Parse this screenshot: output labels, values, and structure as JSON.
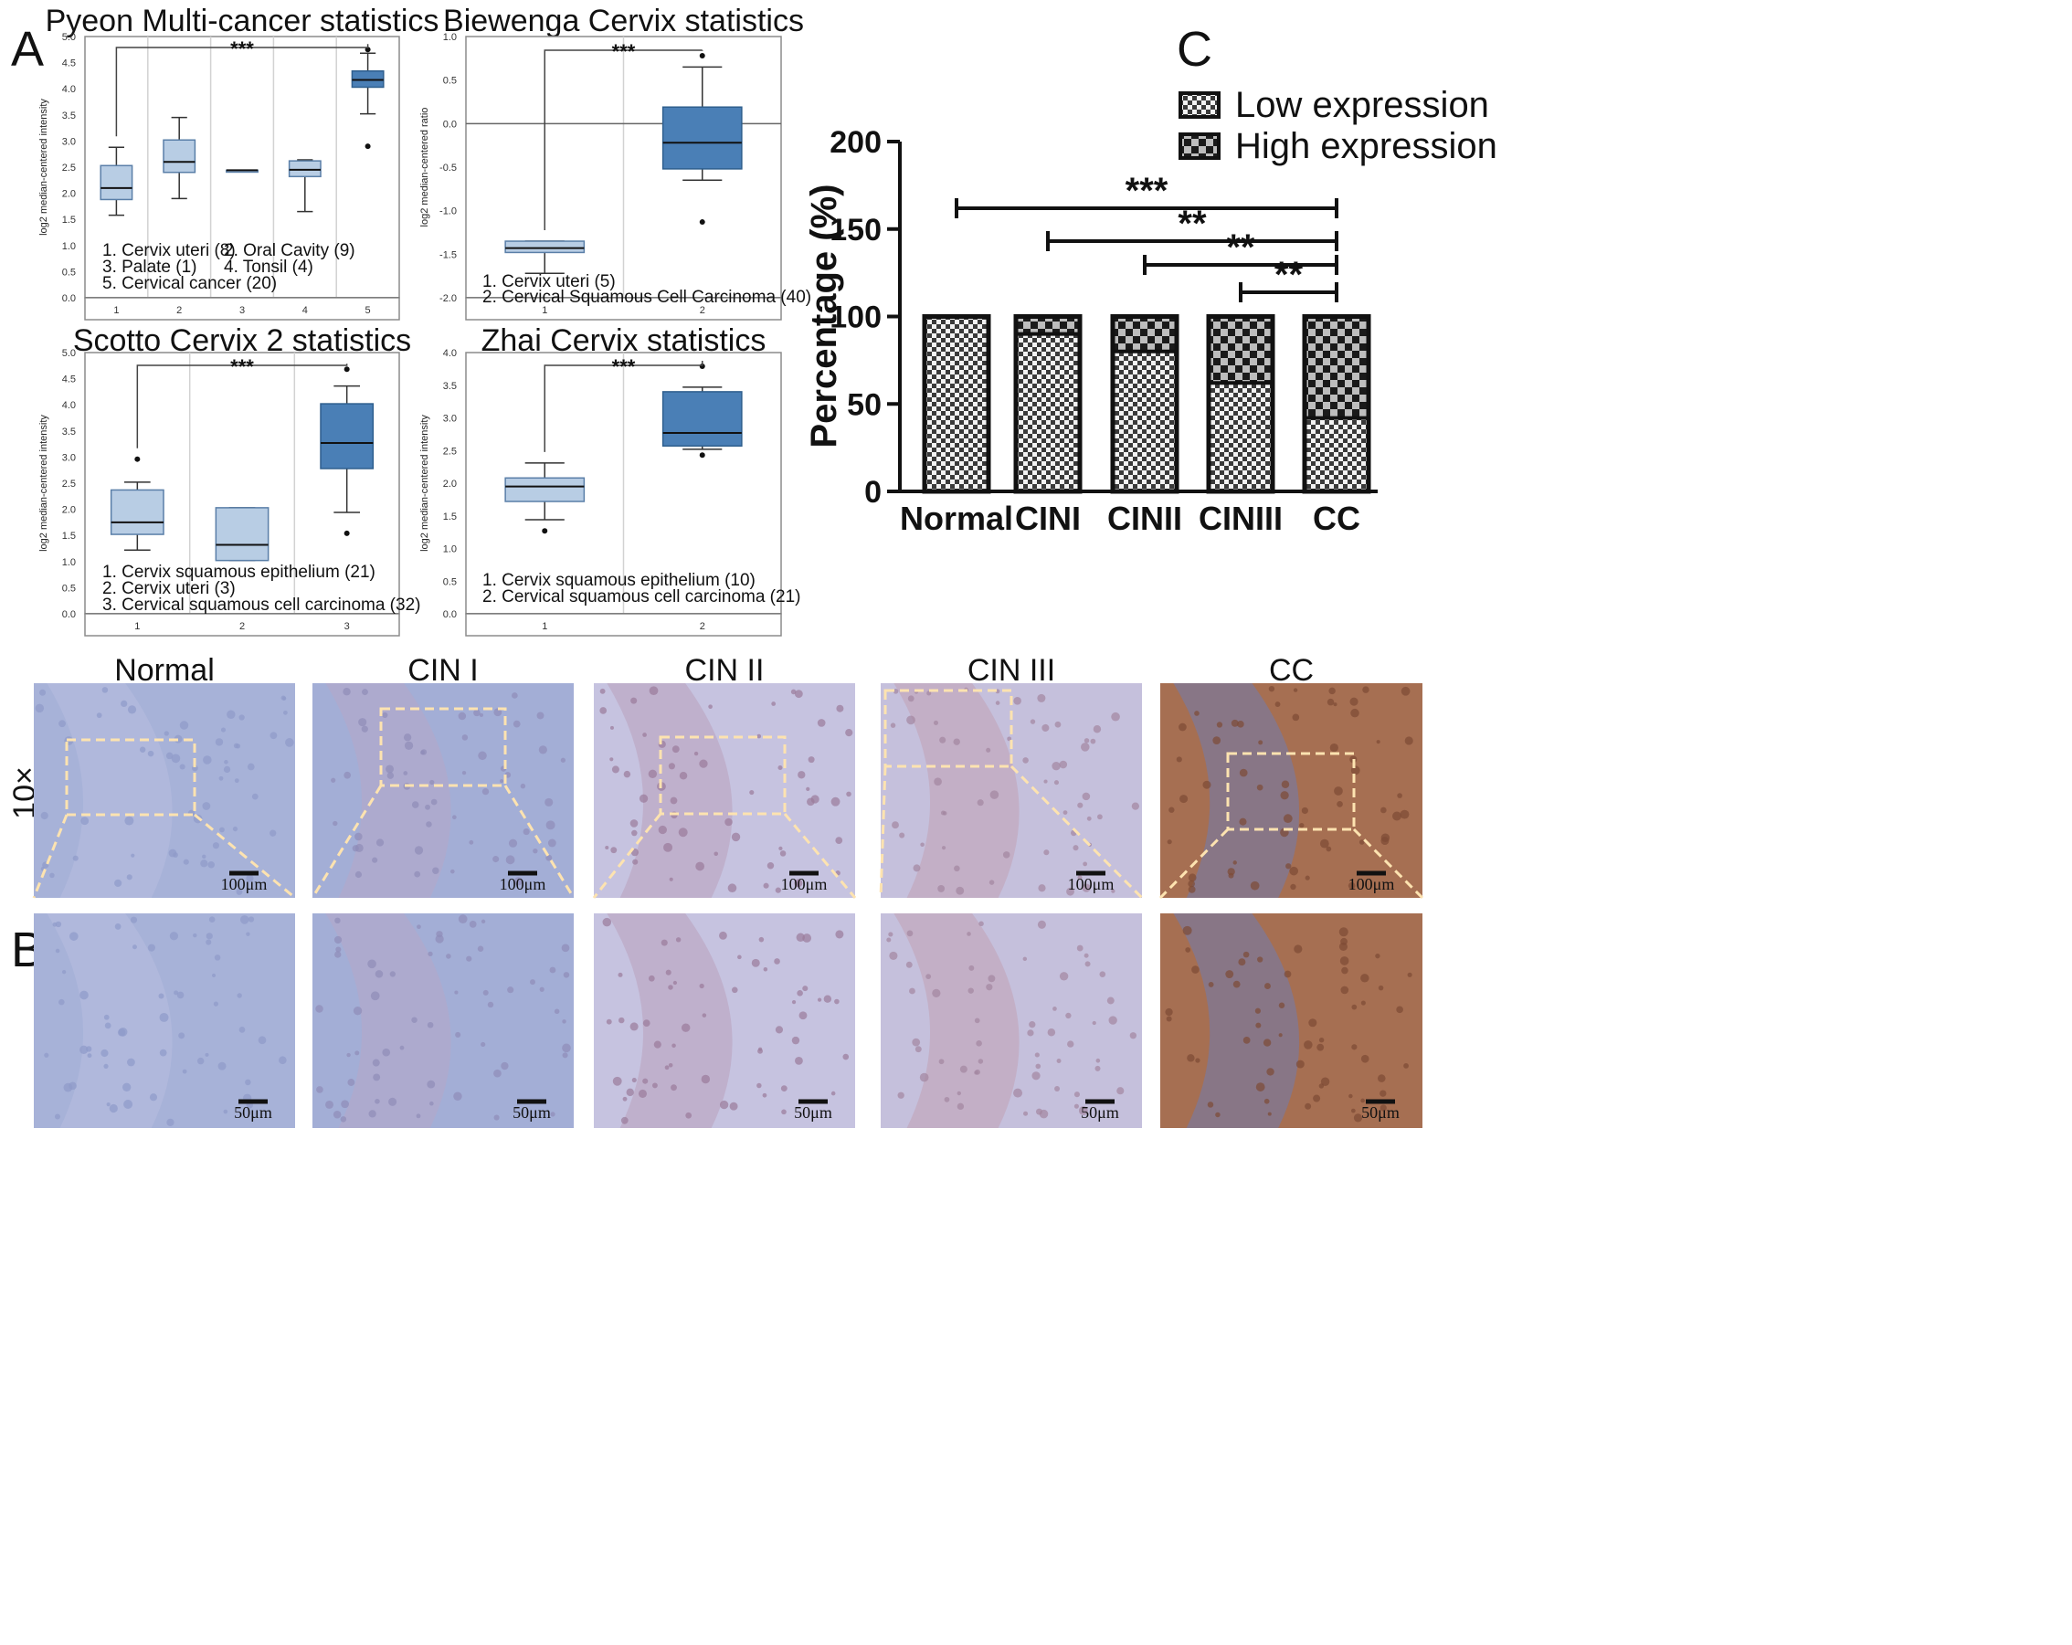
{
  "panel_labels": {
    "a": "A",
    "b": "B",
    "c": "C"
  },
  "colors": {
    "highlight": "#5b8bc0",
    "box_light": "#b8cde4",
    "box_dark": "#4a7fb6",
    "text_dark": "#111111"
  },
  "chart_data": [
    {
      "type": "box",
      "title": "Pyeon Multi-cancer statistics",
      "ylabel": "log2 median-centered intensity",
      "ylim": [
        0.0,
        5.0
      ],
      "yticks": [
        "0.0",
        "0.5",
        "1.0",
        "1.5",
        "2.0",
        "2.5",
        "3.0",
        "3.5",
        "4.0",
        "4.5",
        "5.0"
      ],
      "categories": [
        "1",
        "2",
        "3",
        "4",
        "5"
      ],
      "boxes": [
        {
          "min": 1.58,
          "q1": 1.88,
          "median": 2.1,
          "q3": 2.53,
          "max": 2.88,
          "outliers": [],
          "dark": false
        },
        {
          "min": 1.9,
          "q1": 2.4,
          "median": 2.6,
          "q3": 3.02,
          "max": 3.45,
          "outliers": [],
          "dark": false
        },
        {
          "min": 2.44,
          "q1": 2.44,
          "median": 2.44,
          "q3": 2.44,
          "max": 2.44,
          "outliers": [],
          "dark": false
        },
        {
          "min": 1.65,
          "q1": 2.32,
          "median": 2.45,
          "q3": 2.62,
          "max": 2.64,
          "outliers": [],
          "dark": false
        },
        {
          "min": 3.52,
          "q1": 4.03,
          "median": 4.17,
          "q3": 4.34,
          "max": 4.68,
          "outliers": [
            2.9,
            4.75
          ],
          "dark": true
        }
      ],
      "significance": {
        "from": 1,
        "to": 5,
        "label": "***"
      },
      "legend": [
        {
          "text": "1. Cervix uteri (8)",
          "highlight": false
        },
        {
          "text": "2. Oral Cavity (9)",
          "highlight": false
        },
        {
          "text": "3. Palate (1)",
          "highlight": false
        },
        {
          "text": "4. Tonsil (4)",
          "highlight": false
        },
        {
          "text": "5. Cervical cancer (20)",
          "highlight": true
        }
      ]
    },
    {
      "type": "box",
      "title": "Biewenga Cervix statistics",
      "ylabel": "log2 median-centered ratio",
      "ylim": [
        -2.0,
        1.0
      ],
      "yticks": [
        "-2.0",
        "-1.5",
        "-1.0",
        "-0.5",
        "0.0",
        "0.5",
        "1.0"
      ],
      "categories": [
        "1",
        "2"
      ],
      "boxes": [
        {
          "min": -1.72,
          "q1": -1.48,
          "median": -1.43,
          "q3": -1.35,
          "max": -1.35,
          "outliers": [],
          "dark": false
        },
        {
          "min": -0.65,
          "q1": -0.52,
          "median": -0.22,
          "q3": 0.19,
          "max": 0.65,
          "outliers": [
            -1.13,
            0.78
          ],
          "dark": true
        }
      ],
      "significance": {
        "from": 1,
        "to": 2,
        "label": "***"
      },
      "legend": [
        {
          "text": "1. Cervix uteri (5)",
          "highlight": false
        },
        {
          "text": "2. Cervical Squamous Cell Carcinoma (40)",
          "highlight": true
        }
      ]
    },
    {
      "type": "box",
      "title": "Scotto Cervix 2 statistics",
      "ylabel": "log2 median-centered intensity",
      "ylim": [
        0.0,
        5.0
      ],
      "yticks": [
        "0.0",
        "0.5",
        "1.0",
        "1.5",
        "2.0",
        "2.5",
        "3.0",
        "3.5",
        "4.0",
        "4.5",
        "5.0"
      ],
      "categories": [
        "1",
        "2",
        "3"
      ],
      "boxes": [
        {
          "min": 1.22,
          "q1": 1.52,
          "median": 1.75,
          "q3": 2.37,
          "max": 2.52,
          "outliers": [
            2.96
          ],
          "dark": false
        },
        {
          "min": 1.02,
          "q1": 1.02,
          "median": 1.32,
          "q3": 2.03,
          "max": 2.03,
          "outliers": [],
          "dark": false
        },
        {
          "min": 1.94,
          "q1": 2.78,
          "median": 3.27,
          "q3": 4.02,
          "max": 4.36,
          "outliers": [
            1.54,
            4.68
          ],
          "dark": true
        }
      ],
      "significance": {
        "from": 1,
        "to": 3,
        "label": "***"
      },
      "legend": [
        {
          "text": "1. Cervix squamous epithelium (21)",
          "highlight": false
        },
        {
          "text": "2. Cervix uteri (3)",
          "highlight": false
        },
        {
          "text": "3. Cervical squamous cell carcinoma (32)",
          "highlight": true
        }
      ]
    },
    {
      "type": "box",
      "title": "Zhai Cervix statistics",
      "ylabel": "log2 median-centered intensity",
      "ylim": [
        0.0,
        4.0
      ],
      "yticks": [
        "0.0",
        "0.5",
        "1.0",
        "1.5",
        "2.0",
        "2.5",
        "3.0",
        "3.5",
        "4.0"
      ],
      "categories": [
        "1",
        "2"
      ],
      "boxes": [
        {
          "min": 1.44,
          "q1": 1.72,
          "median": 1.95,
          "q3": 2.08,
          "max": 2.31,
          "outliers": [
            1.27
          ],
          "dark": false
        },
        {
          "min": 2.52,
          "q1": 2.57,
          "median": 2.77,
          "q3": 3.4,
          "max": 3.47,
          "outliers": [
            2.43,
            3.79
          ],
          "dark": true
        }
      ],
      "significance": {
        "from": 1,
        "to": 2,
        "label": "***"
      },
      "legend": [
        {
          "text": "1. Cervix squamous epithelium (10)",
          "highlight": false
        },
        {
          "text": "2. Cervical squamous cell carcinoma (21)",
          "highlight": true
        }
      ]
    },
    {
      "type": "stacked-bar",
      "ylabel": "Percentage (%)",
      "ylim": [
        0,
        200
      ],
      "yticks": [
        "0",
        "50",
        "100",
        "150",
        "200"
      ],
      "categories": [
        "Normal",
        "CINI",
        "CINII",
        "CINIII",
        "CC"
      ],
      "series": [
        {
          "name": "Low expression",
          "values": [
            100,
            90,
            80,
            62,
            42
          ]
        },
        {
          "name": "High expression",
          "values": [
            0,
            10,
            20,
            38,
            58
          ]
        }
      ],
      "legend_position": "top-right",
      "significance": [
        {
          "from": "Normal",
          "to": "CC",
          "label": "***"
        },
        {
          "from": "CINI",
          "to": "CC",
          "label": "**"
        },
        {
          "from": "CINII",
          "to": "CC",
          "label": "**"
        },
        {
          "from": "CINIII",
          "to": "CC",
          "label": "**"
        }
      ]
    }
  ],
  "ihc": {
    "columns": [
      {
        "title": "Normal",
        "tone": "normal"
      },
      {
        "title": "CIN I",
        "tone": "cin1"
      },
      {
        "title": "CIN II",
        "tone": "cin2"
      },
      {
        "title": "CIN III",
        "tone": "cin3"
      },
      {
        "title": "CC",
        "tone": "cc"
      }
    ],
    "magnification": "10×",
    "scale_top": "100μm",
    "scale_bottom": "50μm"
  }
}
